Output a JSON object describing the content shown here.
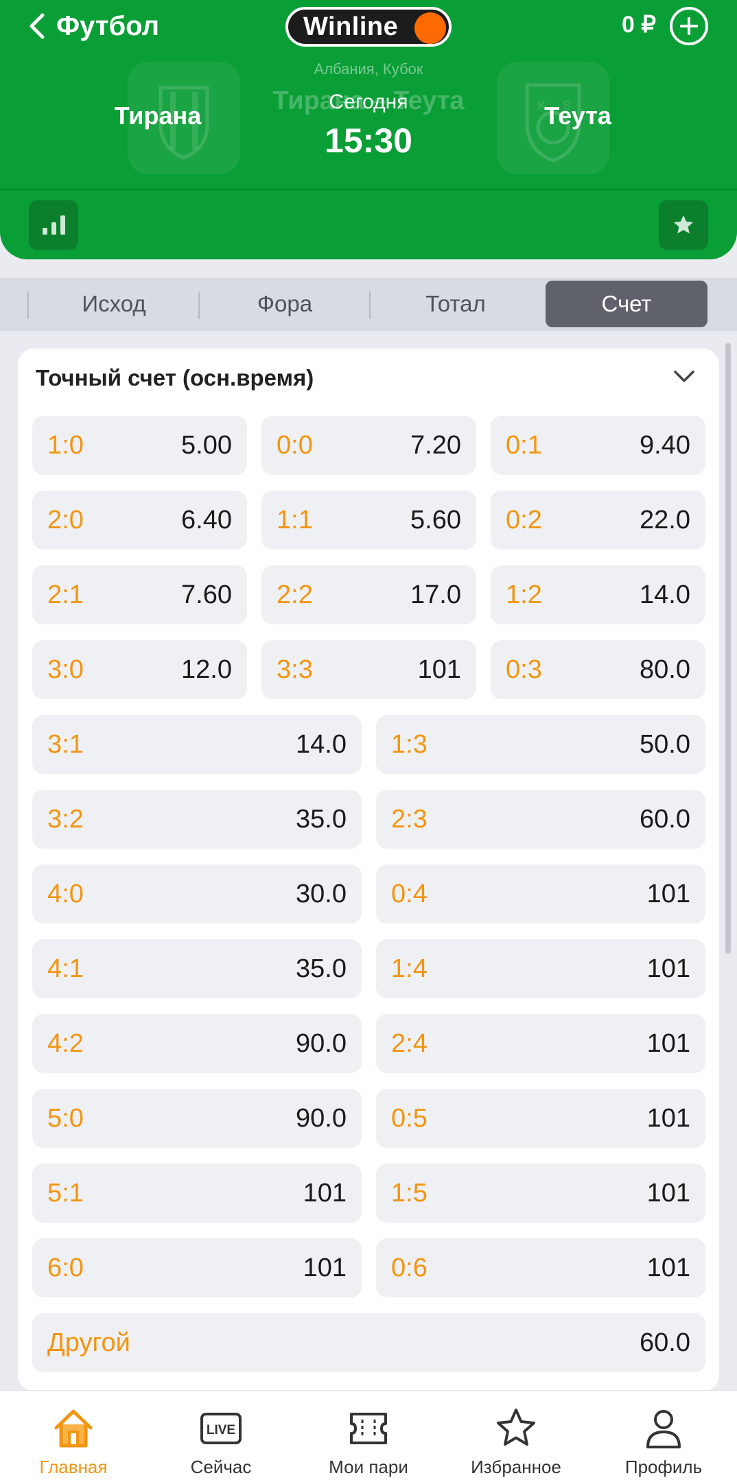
{
  "header": {
    "back_label": "Футбол",
    "logo_text": "Winline",
    "balance": "0 ₽",
    "league": "Албания, Кубок",
    "ghost_title": "Тирана – Теута",
    "date_label": "Сегодня",
    "time": "15:30",
    "home_team": "Тирана",
    "away_team": "Теута",
    "crest_letters": [
      "K",
      "S"
    ]
  },
  "tabs": [
    {
      "label": "Исход",
      "active": false
    },
    {
      "label": "Фора",
      "active": false
    },
    {
      "label": "Тотал",
      "active": false
    },
    {
      "label": "Счет",
      "active": true
    }
  ],
  "market": {
    "title": "Точный счет (осн.время)",
    "rows3": [
      [
        {
          "score": "1:0",
          "odd": "5.00"
        },
        {
          "score": "0:0",
          "odd": "7.20"
        },
        {
          "score": "0:1",
          "odd": "9.40"
        }
      ],
      [
        {
          "score": "2:0",
          "odd": "6.40"
        },
        {
          "score": "1:1",
          "odd": "5.60"
        },
        {
          "score": "0:2",
          "odd": "22.0"
        }
      ],
      [
        {
          "score": "2:1",
          "odd": "7.60"
        },
        {
          "score": "2:2",
          "odd": "17.0"
        },
        {
          "score": "1:2",
          "odd": "14.0"
        }
      ],
      [
        {
          "score": "3:0",
          "odd": "12.0"
        },
        {
          "score": "3:3",
          "odd": "101"
        },
        {
          "score": "0:3",
          "odd": "80.0"
        }
      ]
    ],
    "rows2": [
      [
        {
          "score": "3:1",
          "odd": "14.0"
        },
        {
          "score": "1:3",
          "odd": "50.0"
        }
      ],
      [
        {
          "score": "3:2",
          "odd": "35.0"
        },
        {
          "score": "2:3",
          "odd": "60.0"
        }
      ],
      [
        {
          "score": "4:0",
          "odd": "30.0"
        },
        {
          "score": "0:4",
          "odd": "101"
        }
      ],
      [
        {
          "score": "4:1",
          "odd": "35.0"
        },
        {
          "score": "1:4",
          "odd": "101"
        }
      ],
      [
        {
          "score": "4:2",
          "odd": "90.0"
        },
        {
          "score": "2:4",
          "odd": "101"
        }
      ],
      [
        {
          "score": "5:0",
          "odd": "90.0"
        },
        {
          "score": "0:5",
          "odd": "101"
        }
      ],
      [
        {
          "score": "5:1",
          "odd": "101"
        },
        {
          "score": "1:5",
          "odd": "101"
        }
      ],
      [
        {
          "score": "6:0",
          "odd": "101"
        },
        {
          "score": "0:6",
          "odd": "101"
        }
      ]
    ],
    "other": {
      "score": "Другой",
      "odd": "60.0"
    }
  },
  "nav": [
    {
      "label": "Главная",
      "icon": "home-icon",
      "active": true
    },
    {
      "label": "Сейчас",
      "icon": "live-icon",
      "active": false,
      "badge": "LIVE"
    },
    {
      "label": "Мои пари",
      "icon": "ticket-icon",
      "active": false
    },
    {
      "label": "Избранное",
      "icon": "star-icon",
      "active": false
    },
    {
      "label": "Профиль",
      "icon": "user-icon",
      "active": false
    }
  ],
  "colors": {
    "header_green": "#0a9e36",
    "score_orange": "#f29511",
    "logo_orange": "#ff6a00",
    "tab_active": "#5f626b"
  }
}
